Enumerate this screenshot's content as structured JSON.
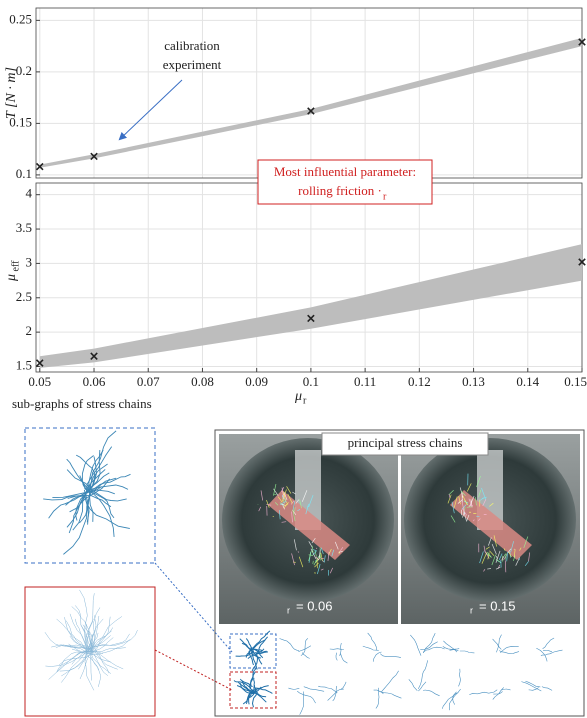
{
  "chart_data": [
    {
      "type": "line",
      "ylabel": "T [N · m]",
      "x": [
        0.05,
        0.06,
        0.1,
        0.15
      ],
      "values": [
        0.108,
        0.118,
        0.162,
        0.229
      ],
      "color": "#222222",
      "band": {
        "color": "#bdbdbd",
        "lower": [
          0.107,
          0.116,
          0.159,
          0.225
        ],
        "upper": [
          0.11,
          0.12,
          0.164,
          0.233
        ]
      },
      "xlim": [
        0.0493,
        0.15
      ],
      "ylim": [
        0.097,
        0.262
      ],
      "yticks": [
        0.1,
        0.15,
        0.2,
        0.25
      ],
      "grid": true
    },
    {
      "type": "line",
      "ylabel": "μ",
      "ylabel_subscript": "eff",
      "xlabel": "μ",
      "xlabel_subscript": "r",
      "x": [
        0.05,
        0.06,
        0.1,
        0.15
      ],
      "values": [
        1.55,
        1.65,
        2.2,
        3.02
      ],
      "color": "#222222",
      "band": {
        "color": "#bdbdbd",
        "lower": [
          1.48,
          1.56,
          2.05,
          2.75
        ],
        "upper": [
          1.65,
          1.76,
          2.36,
          3.28
        ]
      },
      "xlim": [
        0.0493,
        0.15
      ],
      "ylim": [
        1.42,
        4.17
      ],
      "yticks": [
        1.5,
        2,
        2.5,
        3,
        3.5,
        4
      ],
      "xticks": [
        0.05,
        0.06,
        0.07,
        0.08,
        0.09,
        0.1,
        0.11,
        0.12,
        0.13,
        0.14,
        0.15
      ],
      "grid": true
    }
  ],
  "annotations": {
    "calibration": [
      "calibration",
      "experiment"
    ],
    "influential": {
      "line1": "Most influential parameter:",
      "line2": "rolling friction ·",
      "line2_subscript": "r"
    }
  },
  "figure": {
    "subgraphs_title": "sub-graphs of stress chains",
    "photo_title": "principal stress chains",
    "photo_labels": [
      {
        "subscript": "r",
        "text": "= 0.06"
      },
      {
        "subscript": "r",
        "text": "= 0.15"
      }
    ]
  }
}
